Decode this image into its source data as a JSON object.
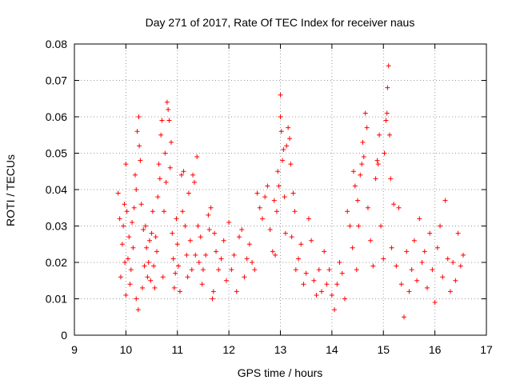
{
  "chart_data": {
    "type": "scatter",
    "title": "Day 271 of 2017, Rate Of TEC Index for receiver naus",
    "xlabel": "GPS time / hours",
    "ylabel": "ROTI / TECUs",
    "xlim": [
      9,
      17
    ],
    "ylim": [
      0,
      0.08
    ],
    "x_ticks": [
      "9",
      "10",
      "11",
      "12",
      "13",
      "14",
      "15",
      "16",
      "17"
    ],
    "y_ticks": [
      "0",
      "0.01",
      "0.02",
      "0.03",
      "0.04",
      "0.05",
      "0.06",
      "0.07",
      "0.08"
    ],
    "grid": true,
    "marker": "+",
    "color": "#ff0000",
    "series": [
      {
        "name": "ROTI",
        "points": [
          [
            9.85,
            0.039
          ],
          [
            9.88,
            0.032
          ],
          [
            9.9,
            0.016
          ],
          [
            9.93,
            0.025
          ],
          [
            9.95,
            0.03
          ],
          [
            9.97,
            0.036
          ],
          [
            9.98,
            0.02
          ],
          [
            10.0,
            0.047
          ],
          [
            10.0,
            0.011
          ],
          [
            10.02,
            0.034
          ],
          [
            10.04,
            0.021
          ],
          [
            10.06,
            0.027
          ],
          [
            10.08,
            0.014
          ],
          [
            10.1,
            0.018
          ],
          [
            10.12,
            0.031
          ],
          [
            10.14,
            0.024
          ],
          [
            10.16,
            0.035
          ],
          [
            10.18,
            0.044
          ],
          [
            10.2,
            0.04
          ],
          [
            10.2,
            0.01
          ],
          [
            10.22,
            0.056
          ],
          [
            10.24,
            0.007
          ],
          [
            10.25,
            0.06
          ],
          [
            10.26,
            0.052
          ],
          [
            10.28,
            0.048
          ],
          [
            10.3,
            0.036
          ],
          [
            10.32,
            0.013
          ],
          [
            10.34,
            0.029
          ],
          [
            10.36,
            0.019
          ],
          [
            10.38,
            0.03
          ],
          [
            10.4,
            0.024
          ],
          [
            10.42,
            0.016
          ],
          [
            10.44,
            0.02
          ],
          [
            10.46,
            0.026
          ],
          [
            10.48,
            0.015
          ],
          [
            10.5,
            0.028
          ],
          [
            10.52,
            0.034
          ],
          [
            10.54,
            0.019
          ],
          [
            10.56,
            0.013
          ],
          [
            10.58,
            0.027
          ],
          [
            10.6,
            0.023
          ],
          [
            10.62,
            0.038
          ],
          [
            10.64,
            0.047
          ],
          [
            10.66,
            0.043
          ],
          [
            10.68,
            0.055
          ],
          [
            10.7,
            0.059
          ],
          [
            10.72,
            0.016
          ],
          [
            10.74,
            0.034
          ],
          [
            10.76,
            0.05
          ],
          [
            10.78,
            0.042
          ],
          [
            10.8,
            0.064
          ],
          [
            10.82,
            0.062
          ],
          [
            10.84,
            0.059
          ],
          [
            10.86,
            0.046
          ],
          [
            10.88,
            0.053
          ],
          [
            10.9,
            0.028
          ],
          [
            10.92,
            0.021
          ],
          [
            10.94,
            0.013
          ],
          [
            10.96,
            0.017
          ],
          [
            10.98,
            0.032
          ],
          [
            11.0,
            0.025
          ],
          [
            11.02,
            0.019
          ],
          [
            11.05,
            0.012
          ],
          [
            11.08,
            0.044
          ],
          [
            11.1,
            0.034
          ],
          [
            11.12,
            0.045
          ],
          [
            11.15,
            0.03
          ],
          [
            11.18,
            0.022
          ],
          [
            11.2,
            0.016
          ],
          [
            11.22,
            0.039
          ],
          [
            11.25,
            0.026
          ],
          [
            11.28,
            0.018
          ],
          [
            11.3,
            0.044
          ],
          [
            11.33,
            0.042
          ],
          [
            11.35,
            0.022
          ],
          [
            11.38,
            0.049
          ],
          [
            11.4,
            0.03
          ],
          [
            11.42,
            0.02
          ],
          [
            11.45,
            0.027
          ],
          [
            11.48,
            0.014
          ],
          [
            11.5,
            0.018
          ],
          [
            11.55,
            0.022
          ],
          [
            11.6,
            0.033
          ],
          [
            11.62,
            0.029
          ],
          [
            11.65,
            0.035
          ],
          [
            11.68,
            0.01
          ],
          [
            11.7,
            0.012
          ],
          [
            11.72,
            0.028
          ],
          [
            11.75,
            0.023
          ],
          [
            11.8,
            0.018
          ],
          [
            11.85,
            0.021
          ],
          [
            11.9,
            0.026
          ],
          [
            11.95,
            0.015
          ],
          [
            12.0,
            0.031
          ],
          [
            12.05,
            0.018
          ],
          [
            12.1,
            0.022
          ],
          [
            12.15,
            0.012
          ],
          [
            12.2,
            0.027
          ],
          [
            12.25,
            0.029
          ],
          [
            12.3,
            0.016
          ],
          [
            12.35,
            0.021
          ],
          [
            12.4,
            0.025
          ],
          [
            12.45,
            0.02
          ],
          [
            12.5,
            0.018
          ],
          [
            12.55,
            0.039
          ],
          [
            12.6,
            0.035
          ],
          [
            12.65,
            0.032
          ],
          [
            12.7,
            0.038
          ],
          [
            12.75,
            0.041
          ],
          [
            12.8,
            0.029
          ],
          [
            12.85,
            0.023
          ],
          [
            12.88,
            0.037
          ],
          [
            12.9,
            0.022
          ],
          [
            12.93,
            0.034
          ],
          [
            12.95,
            0.045
          ],
          [
            12.97,
            0.041
          ],
          [
            13.0,
            0.066
          ],
          [
            13.0,
            0.06
          ],
          [
            13.02,
            0.056
          ],
          [
            13.04,
            0.048
          ],
          [
            13.06,
            0.051
          ],
          [
            13.08,
            0.038
          ],
          [
            13.1,
            0.028
          ],
          [
            13.12,
            0.052
          ],
          [
            13.15,
            0.057
          ],
          [
            13.18,
            0.054
          ],
          [
            13.2,
            0.047
          ],
          [
            13.22,
            0.027
          ],
          [
            13.25,
            0.039
          ],
          [
            13.28,
            0.034
          ],
          [
            13.3,
            0.018
          ],
          [
            13.35,
            0.021
          ],
          [
            13.4,
            0.025
          ],
          [
            13.45,
            0.014
          ],
          [
            13.5,
            0.017
          ],
          [
            13.55,
            0.032
          ],
          [
            13.6,
            0.026
          ],
          [
            13.65,
            0.015
          ],
          [
            13.7,
            0.011
          ],
          [
            13.75,
            0.018
          ],
          [
            13.8,
            0.012
          ],
          [
            13.85,
            0.023
          ],
          [
            13.9,
            0.014
          ],
          [
            13.95,
            0.018
          ],
          [
            14.0,
            0.011
          ],
          [
            14.05,
            0.007
          ],
          [
            14.1,
            0.014
          ],
          [
            14.15,
            0.02
          ],
          [
            14.2,
            0.017
          ],
          [
            14.25,
            0.01
          ],
          [
            14.3,
            0.034
          ],
          [
            14.35,
            0.03
          ],
          [
            14.4,
            0.024
          ],
          [
            14.42,
            0.045
          ],
          [
            14.45,
            0.041
          ],
          [
            14.48,
            0.018
          ],
          [
            14.5,
            0.037
          ],
          [
            14.52,
            0.03
          ],
          [
            14.55,
            0.044
          ],
          [
            14.58,
            0.047
          ],
          [
            14.6,
            0.053
          ],
          [
            14.62,
            0.049
          ],
          [
            14.65,
            0.061
          ],
          [
            14.68,
            0.057
          ],
          [
            14.7,
            0.035
          ],
          [
            14.75,
            0.026
          ],
          [
            14.8,
            0.019
          ],
          [
            14.85,
            0.043
          ],
          [
            14.88,
            0.048
          ],
          [
            14.9,
            0.047
          ],
          [
            14.92,
            0.055
          ],
          [
            14.95,
            0.03
          ],
          [
            15.0,
            0.021
          ],
          [
            15.02,
            0.05
          ],
          [
            15.05,
            0.059
          ],
          [
            15.07,
            0.061
          ],
          [
            15.08,
            0.068
          ],
          [
            15.1,
            0.074
          ],
          [
            15.12,
            0.055
          ],
          [
            15.14,
            0.043
          ],
          [
            15.16,
            0.024
          ],
          [
            15.2,
            0.036
          ],
          [
            15.25,
            0.019
          ],
          [
            15.3,
            0.035
          ],
          [
            15.35,
            0.014
          ],
          [
            15.4,
            0.005
          ],
          [
            15.45,
            0.023
          ],
          [
            15.5,
            0.012
          ],
          [
            15.55,
            0.018
          ],
          [
            15.6,
            0.026
          ],
          [
            15.65,
            0.015
          ],
          [
            15.7,
            0.032
          ],
          [
            15.75,
            0.02
          ],
          [
            15.8,
            0.023
          ],
          [
            15.85,
            0.013
          ],
          [
            15.9,
            0.028
          ],
          [
            15.95,
            0.018
          ],
          [
            16.0,
            0.009
          ],
          [
            16.05,
            0.024
          ],
          [
            16.1,
            0.03
          ],
          [
            16.15,
            0.016
          ],
          [
            16.2,
            0.037
          ],
          [
            16.25,
            0.021
          ],
          [
            16.3,
            0.012
          ],
          [
            16.35,
            0.02
          ],
          [
            16.4,
            0.015
          ],
          [
            16.45,
            0.028
          ],
          [
            16.5,
            0.019
          ],
          [
            16.55,
            0.022
          ]
        ]
      }
    ]
  }
}
